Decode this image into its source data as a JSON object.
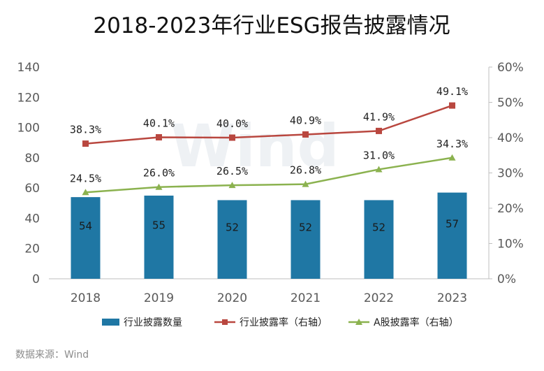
{
  "chart_data": {
    "type": "bar",
    "title": "2018-2023年行业ESG报告披露情况",
    "categories": [
      "2018",
      "2019",
      "2020",
      "2021",
      "2022",
      "2023"
    ],
    "ylim": [
      0,
      140
    ],
    "y2lim": [
      0,
      60
    ],
    "yticks": [
      "0",
      "20",
      "40",
      "60",
      "80",
      "100",
      "120",
      "140"
    ],
    "y2ticks": [
      "0%",
      "10%",
      "20%",
      "30%",
      "40%",
      "50%",
      "60%"
    ],
    "series": [
      {
        "name": "行业披露数量",
        "kind": "bar",
        "axis": "left",
        "color": "#1f77a4",
        "values": [
          54,
          55,
          52,
          52,
          52,
          57
        ],
        "labels": [
          "54",
          "55",
          "52",
          "52",
          "52",
          "57"
        ]
      },
      {
        "name": "行业披露率（右轴）",
        "kind": "line",
        "axis": "right",
        "color": "#b9473f",
        "marker": "square",
        "values": [
          38.3,
          40.1,
          40.0,
          40.9,
          41.9,
          49.1
        ],
        "labels": [
          "38.3%",
          "40.1%",
          "40.0%",
          "40.9%",
          "41.9%",
          "49.1%"
        ]
      },
      {
        "name": "A股披露率（右轴）",
        "kind": "line",
        "axis": "right",
        "color": "#8bb24f",
        "marker": "triangle",
        "values": [
          24.5,
          26.0,
          26.5,
          26.8,
          31.0,
          34.3
        ],
        "labels": [
          "24.5%",
          "26.0%",
          "26.5%",
          "26.8%",
          "31.0%",
          "34.3%"
        ]
      }
    ],
    "legend": "bottom",
    "grid": false
  },
  "source": "数据来源：Wind",
  "watermark": "Wind"
}
